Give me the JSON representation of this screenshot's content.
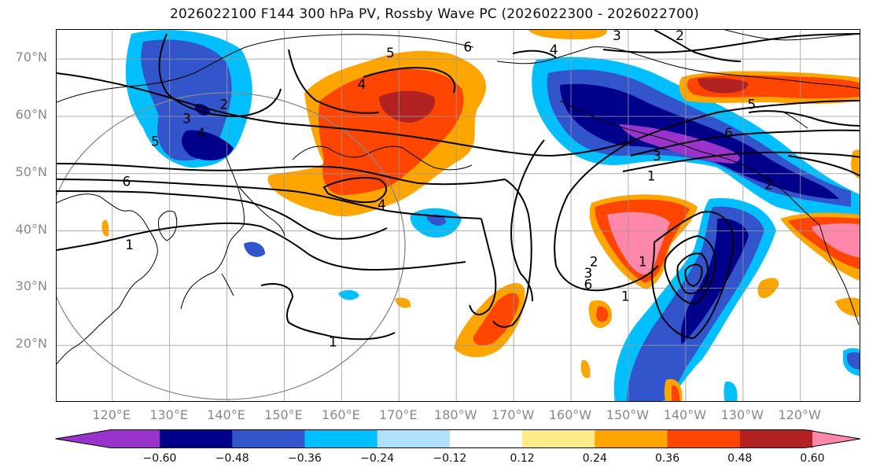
{
  "title": "2026022100 F144 300 hPa PV, Rossby Wave PC (2026022300 - 2026022700)",
  "lat_labels": [
    {
      "text": "70°N",
      "lat": 70
    },
    {
      "text": "60°N",
      "lat": 60
    },
    {
      "text": "50°N",
      "lat": 50
    },
    {
      "text": "40°N",
      "lat": 40
    },
    {
      "text": "30°N",
      "lat": 30
    },
    {
      "text": "20°N",
      "lat": 20
    }
  ],
  "lon_labels": [
    {
      "text": "120°E",
      "lon": 120
    },
    {
      "text": "130°E",
      "lon": 130
    },
    {
      "text": "140°E",
      "lon": 140
    },
    {
      "text": "150°E",
      "lon": 150
    },
    {
      "text": "160°E",
      "lon": 160
    },
    {
      "text": "170°E",
      "lon": 170
    },
    {
      "text": "180°W",
      "lon": 180
    },
    {
      "text": "170°W",
      "lon": 190
    },
    {
      "text": "160°W",
      "lon": 200
    },
    {
      "text": "150°W",
      "lon": 210
    },
    {
      "text": "140°W",
      "lon": 220
    },
    {
      "text": "130°W",
      "lon": 230
    },
    {
      "text": "120°W",
      "lon": 240
    }
  ],
  "colorbar": {
    "colors": [
      "#9933cc",
      "#00008b",
      "#3355cc",
      "#00bfff",
      "#b0e0ff",
      "#ffffff",
      "#ffeb8a",
      "#ffa500",
      "#ff4500",
      "#b22222",
      "#ff88aa"
    ],
    "ticks": [
      "−0.60",
      "−0.48",
      "−0.36",
      "−0.24",
      "−0.12",
      "0.12",
      "0.24",
      "0.36",
      "0.48",
      "0.60"
    ]
  },
  "contour_labels": [
    {
      "text": "2",
      "lon": 139.5,
      "lat": 62
    },
    {
      "text": "3",
      "lon": 133,
      "lat": 59.5
    },
    {
      "text": "4",
      "lon": 135.5,
      "lat": 57
    },
    {
      "text": "5",
      "lon": 127.5,
      "lat": 55.5
    },
    {
      "text": "6",
      "lon": 122.5,
      "lat": 48.5
    },
    {
      "text": "1",
      "lon": 123,
      "lat": 37.5
    },
    {
      "text": "1",
      "lon": 158.5,
      "lat": 20.5
    },
    {
      "text": "4",
      "lon": 163.5,
      "lat": 65.5
    },
    {
      "text": "5",
      "lon": 168.5,
      "lat": 71
    },
    {
      "text": "6",
      "lon": 182,
      "lat": 72
    },
    {
      "text": "4",
      "lon": 167,
      "lat": 44.5
    },
    {
      "text": "3",
      "lon": 208,
      "lat": 74
    },
    {
      "text": "2",
      "lon": 219,
      "lat": 74
    },
    {
      "text": "4",
      "lon": 197,
      "lat": 71.5
    },
    {
      "text": "5",
      "lon": 231.5,
      "lat": 62
    },
    {
      "text": "6",
      "lon": 227.5,
      "lat": 57
    },
    {
      "text": "3",
      "lon": 215,
      "lat": 53
    },
    {
      "text": "1",
      "lon": 214,
      "lat": 49.5
    },
    {
      "text": "2",
      "lon": 234.5,
      "lat": 48
    },
    {
      "text": "2",
      "lon": 204,
      "lat": 34.5
    },
    {
      "text": "3",
      "lon": 203,
      "lat": 32.5
    },
    {
      "text": "6",
      "lon": 203,
      "lat": 30.5
    },
    {
      "text": "1",
      "lon": 209.5,
      "lat": 28.5
    },
    {
      "text": "1",
      "lon": 212.5,
      "lat": 34.5
    }
  ]
}
